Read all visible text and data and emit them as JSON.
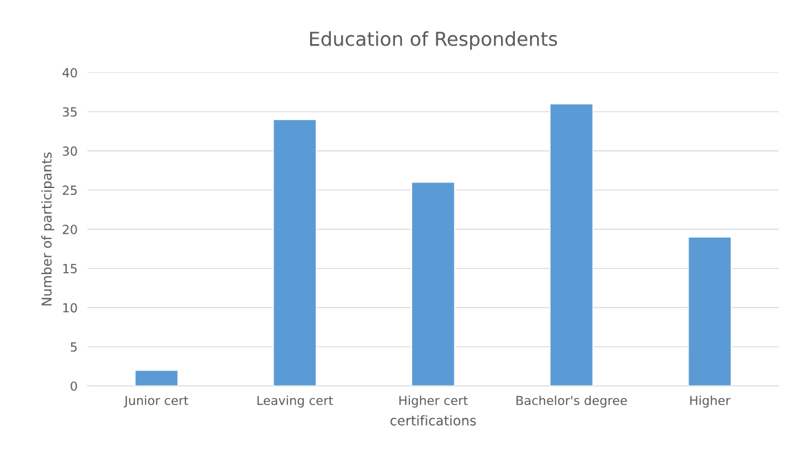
{
  "chart_data": {
    "type": "bar",
    "title": "Education of Respondents",
    "xlabel": "certifications",
    "ylabel": "Number of participants",
    "categories": [
      "Junior cert",
      "Leaving cert",
      "Higher cert",
      "Bachelor's degree",
      "Higher"
    ],
    "values": [
      2,
      34,
      26,
      36,
      19
    ],
    "color": "#5b9bd5",
    "ylim": [
      0,
      40
    ],
    "yticks": [
      0,
      5,
      10,
      15,
      20,
      25,
      30,
      35,
      40
    ],
    "grid": "y",
    "legend": false
  }
}
